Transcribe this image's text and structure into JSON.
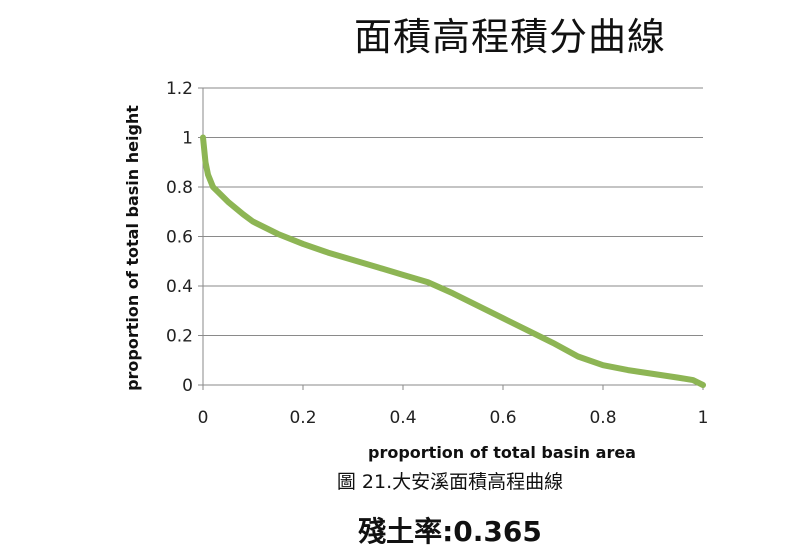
{
  "chart_data": {
    "type": "line",
    "title": "面積高程積分曲線",
    "xlabel": "proportion of total basin area",
    "ylabel": "proportion of total basin height",
    "xlim": [
      0,
      1
    ],
    "ylim": [
      0,
      1.2
    ],
    "xticks": [
      "0",
      "0.2",
      "0.4",
      "0.6",
      "0.8",
      "1"
    ],
    "yticks": [
      "0",
      "0.2",
      "0.4",
      "0.6",
      "0.8",
      "1",
      "1.2"
    ],
    "grid": "horizontal",
    "legend": "none",
    "series": [
      {
        "color": "#8db554",
        "x": [
          0,
          0.005,
          0.01,
          0.02,
          0.03,
          0.05,
          0.08,
          0.1,
          0.15,
          0.2,
          0.25,
          0.3,
          0.35,
          0.4,
          0.45,
          0.5,
          0.55,
          0.6,
          0.65,
          0.7,
          0.75,
          0.8,
          0.85,
          0.9,
          0.95,
          0.98,
          1.0
        ],
        "values": [
          1.0,
          0.9,
          0.85,
          0.8,
          0.78,
          0.74,
          0.69,
          0.66,
          0.61,
          0.57,
          0.535,
          0.505,
          0.475,
          0.445,
          0.415,
          0.37,
          0.32,
          0.27,
          0.22,
          0.17,
          0.115,
          0.08,
          0.06,
          0.045,
          0.03,
          0.02,
          0.0
        ]
      }
    ]
  },
  "caption": "圖 21.大安溪面積高程曲線",
  "ratio_text": "殘土率:0.365"
}
